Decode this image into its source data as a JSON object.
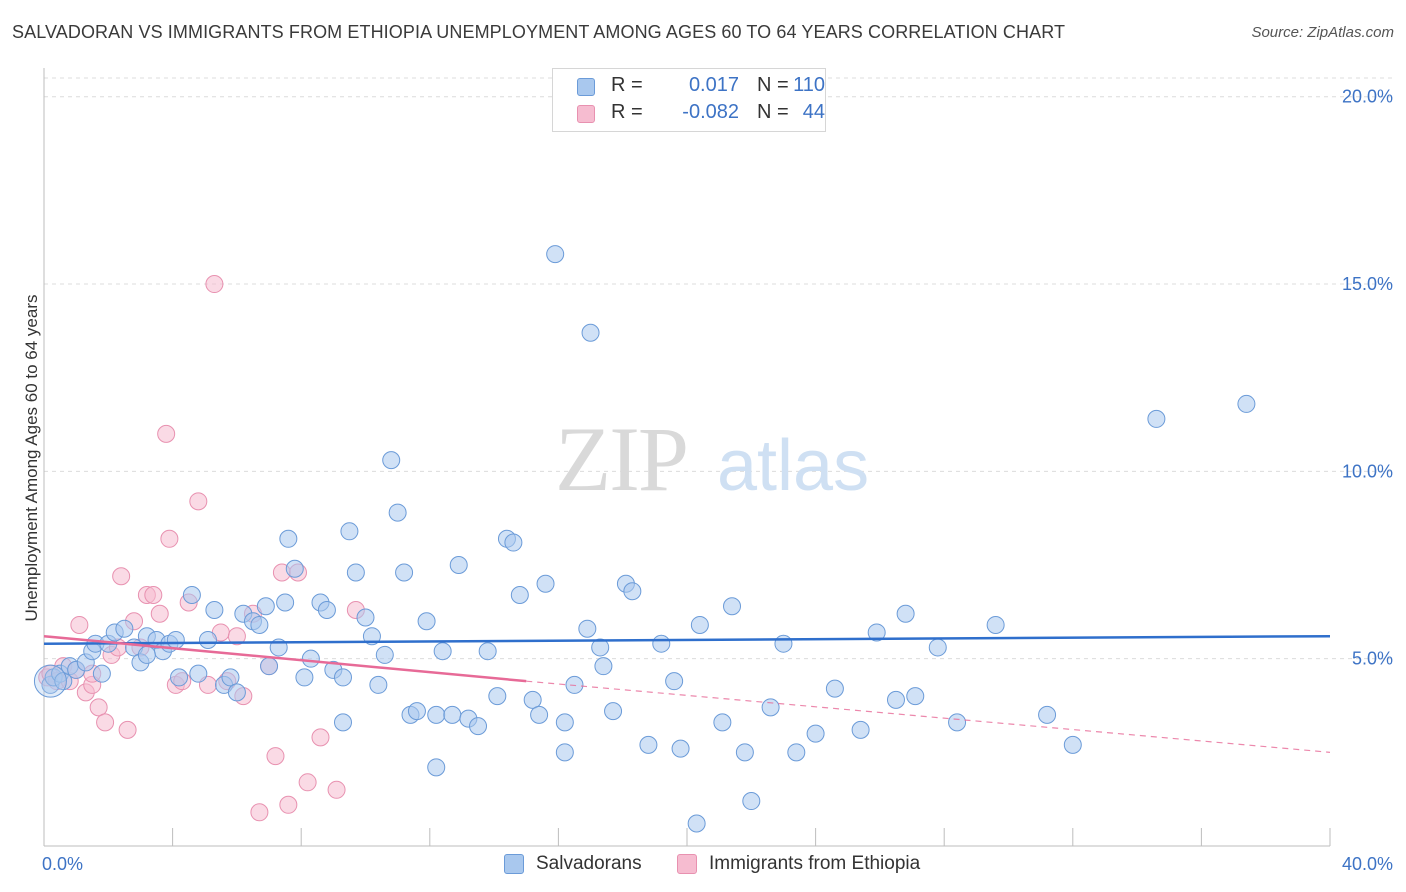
{
  "title": "SALVADORAN VS IMMIGRANTS FROM ETHIOPIA UNEMPLOYMENT AMONG AGES 60 TO 64 YEARS CORRELATION CHART",
  "source": "Source: ZipAtlas.com",
  "watermark": {
    "zip": "ZIP",
    "atlas": "atlas"
  },
  "legend": {
    "rows": [
      {
        "r_label": "R =",
        "r_value": "0.017",
        "n_label": "N =",
        "n_value": "110"
      },
      {
        "r_label": "R =",
        "r_value": "-0.082",
        "n_label": "N =",
        "n_value": "44"
      }
    ]
  },
  "bottom_legend": {
    "items": [
      "Salvadorans",
      "Immigrants from Ethiopia"
    ]
  },
  "colors": {
    "salvadorans_fill": "#a9c8ee",
    "salvadorans_stroke": "#6b9bd8",
    "salvadorans_line": "#2f6fcc",
    "ethiopia_fill": "#f6bcd0",
    "ethiopia_stroke": "#e891b0",
    "ethiopia_line": "#e76a97",
    "tick_text": "#3d73c5",
    "grid": "#dcdcdc"
  },
  "chart_data": {
    "type": "scatter",
    "title": "SALVADORAN VS IMMIGRANTS FROM ETHIOPIA UNEMPLOYMENT AMONG AGES 60 TO 64 YEARS CORRELATION CHART",
    "xlabel": "",
    "ylabel": "Unemployment Among Ages 60 to 64 years",
    "xlim": [
      0,
      40
    ],
    "ylim": [
      0,
      20.5
    ],
    "x_tick_labels": [
      "0.0%",
      "40.0%"
    ],
    "y_ticks": [
      5,
      10,
      15,
      20
    ],
    "y_tick_labels": [
      "5.0%",
      "10.0%",
      "15.0%",
      "20.0%"
    ],
    "grid": true,
    "series": [
      {
        "name": "Salvadorans",
        "r": 0.017,
        "n": 110,
        "trend": {
          "x": [
            0,
            40
          ],
          "y": [
            5.4,
            5.6
          ],
          "dashed_beyond": null
        },
        "points": [
          [
            0.2,
            4.3
          ],
          [
            0.3,
            4.5
          ],
          [
            0.5,
            4.6
          ],
          [
            0.6,
            4.4
          ],
          [
            0.8,
            4.8
          ],
          [
            1.0,
            4.7
          ],
          [
            1.3,
            4.9
          ],
          [
            1.5,
            5.2
          ],
          [
            1.6,
            5.4
          ],
          [
            1.8,
            4.6
          ],
          [
            2.0,
            5.4
          ],
          [
            2.2,
            5.7
          ],
          [
            2.5,
            5.8
          ],
          [
            2.8,
            5.3
          ],
          [
            3.0,
            4.9
          ],
          [
            3.2,
            5.6
          ],
          [
            3.5,
            5.5
          ],
          [
            3.7,
            5.2
          ],
          [
            3.9,
            5.4
          ],
          [
            4.1,
            5.5
          ],
          [
            4.2,
            4.5
          ],
          [
            4.6,
            6.7
          ],
          [
            4.8,
            4.6
          ],
          [
            5.1,
            5.5
          ],
          [
            5.3,
            6.3
          ],
          [
            5.6,
            4.3
          ],
          [
            5.8,
            4.5
          ],
          [
            6.0,
            4.1
          ],
          [
            6.2,
            6.2
          ],
          [
            6.5,
            6.0
          ],
          [
            6.7,
            5.9
          ],
          [
            6.9,
            6.4
          ],
          [
            7.3,
            5.3
          ],
          [
            7.5,
            6.5
          ],
          [
            7.6,
            8.2
          ],
          [
            7.8,
            7.4
          ],
          [
            8.1,
            4.5
          ],
          [
            8.3,
            5.0
          ],
          [
            8.6,
            6.5
          ],
          [
            8.8,
            6.3
          ],
          [
            9.0,
            4.7
          ],
          [
            9.3,
            4.5
          ],
          [
            9.5,
            8.4
          ],
          [
            9.7,
            7.3
          ],
          [
            10.0,
            6.1
          ],
          [
            10.2,
            5.6
          ],
          [
            10.4,
            4.3
          ],
          [
            10.6,
            5.1
          ],
          [
            10.8,
            10.3
          ],
          [
            11.0,
            8.9
          ],
          [
            11.2,
            7.3
          ],
          [
            11.4,
            3.5
          ],
          [
            11.6,
            3.6
          ],
          [
            11.9,
            6.0
          ],
          [
            12.2,
            3.5
          ],
          [
            12.4,
            5.2
          ],
          [
            12.7,
            3.5
          ],
          [
            12.9,
            7.5
          ],
          [
            13.2,
            3.4
          ],
          [
            13.5,
            3.2
          ],
          [
            13.8,
            5.2
          ],
          [
            14.1,
            4.0
          ],
          [
            14.4,
            8.2
          ],
          [
            14.6,
            8.1
          ],
          [
            14.8,
            6.7
          ],
          [
            15.2,
            3.9
          ],
          [
            15.4,
            3.5
          ],
          [
            15.6,
            7.0
          ],
          [
            15.9,
            15.8
          ],
          [
            16.2,
            3.3
          ],
          [
            16.5,
            4.3
          ],
          [
            16.9,
            5.8
          ],
          [
            17.3,
            5.3
          ],
          [
            17.7,
            3.6
          ],
          [
            18.1,
            7.0
          ],
          [
            18.3,
            6.8
          ],
          [
            18.8,
            2.7
          ],
          [
            19.2,
            5.4
          ],
          [
            19.6,
            4.4
          ],
          [
            20.4,
            5.9
          ],
          [
            21.1,
            3.3
          ],
          [
            21.4,
            6.4
          ],
          [
            22.6,
            3.7
          ],
          [
            23.0,
            5.4
          ],
          [
            24.0,
            3.0
          ],
          [
            24.6,
            4.2
          ],
          [
            25.4,
            3.1
          ],
          [
            26.5,
            3.9
          ],
          [
            26.8,
            6.2
          ],
          [
            27.1,
            4.0
          ],
          [
            27.8,
            5.3
          ],
          [
            28.4,
            3.3
          ],
          [
            29.6,
            5.9
          ],
          [
            31.2,
            3.5
          ],
          [
            32.0,
            2.7
          ],
          [
            34.6,
            11.4
          ],
          [
            37.4,
            11.8
          ],
          [
            23.4,
            2.5
          ],
          [
            22.0,
            1.2
          ],
          [
            25.9,
            5.7
          ],
          [
            17.4,
            4.8
          ],
          [
            16.2,
            2.5
          ],
          [
            12.2,
            2.1
          ],
          [
            7.0,
            4.8
          ],
          [
            3.2,
            5.1
          ],
          [
            17.0,
            13.7
          ],
          [
            9.3,
            3.3
          ],
          [
            21.8,
            2.5
          ],
          [
            19.8,
            2.6
          ],
          [
            20.3,
            0.6
          ]
        ]
      },
      {
        "name": "Immigrants from Ethiopia",
        "r": -0.082,
        "n": 44,
        "trend": {
          "x": [
            0,
            15
          ],
          "y": [
            5.6,
            4.4
          ],
          "dashed_to": [
            40,
            2.5
          ]
        },
        "points": [
          [
            0.1,
            4.5
          ],
          [
            0.2,
            4.6
          ],
          [
            0.4,
            4.4
          ],
          [
            0.6,
            4.8
          ],
          [
            0.8,
            4.4
          ],
          [
            1.0,
            4.7
          ],
          [
            1.1,
            5.9
          ],
          [
            1.3,
            4.1
          ],
          [
            1.5,
            4.3
          ],
          [
            1.7,
            3.7
          ],
          [
            1.9,
            3.3
          ],
          [
            2.1,
            5.1
          ],
          [
            2.3,
            5.3
          ],
          [
            2.4,
            7.2
          ],
          [
            2.6,
            3.1
          ],
          [
            2.8,
            6.0
          ],
          [
            3.0,
            5.3
          ],
          [
            3.2,
            6.7
          ],
          [
            3.4,
            6.7
          ],
          [
            3.6,
            6.2
          ],
          [
            3.8,
            11.0
          ],
          [
            3.9,
            8.2
          ],
          [
            4.1,
            4.3
          ],
          [
            4.3,
            4.4
          ],
          [
            4.5,
            6.5
          ],
          [
            4.8,
            9.2
          ],
          [
            5.1,
            4.3
          ],
          [
            5.3,
            15.0
          ],
          [
            5.5,
            5.7
          ],
          [
            5.7,
            4.4
          ],
          [
            6.0,
            5.6
          ],
          [
            6.2,
            4.0
          ],
          [
            6.5,
            6.2
          ],
          [
            6.7,
            0.9
          ],
          [
            7.0,
            4.8
          ],
          [
            7.2,
            2.4
          ],
          [
            7.4,
            7.3
          ],
          [
            7.6,
            1.1
          ],
          [
            7.9,
            7.3
          ],
          [
            8.2,
            1.7
          ],
          [
            8.6,
            2.9
          ],
          [
            9.1,
            1.5
          ],
          [
            9.7,
            6.3
          ],
          [
            1.5,
            4.6
          ]
        ]
      }
    ]
  }
}
